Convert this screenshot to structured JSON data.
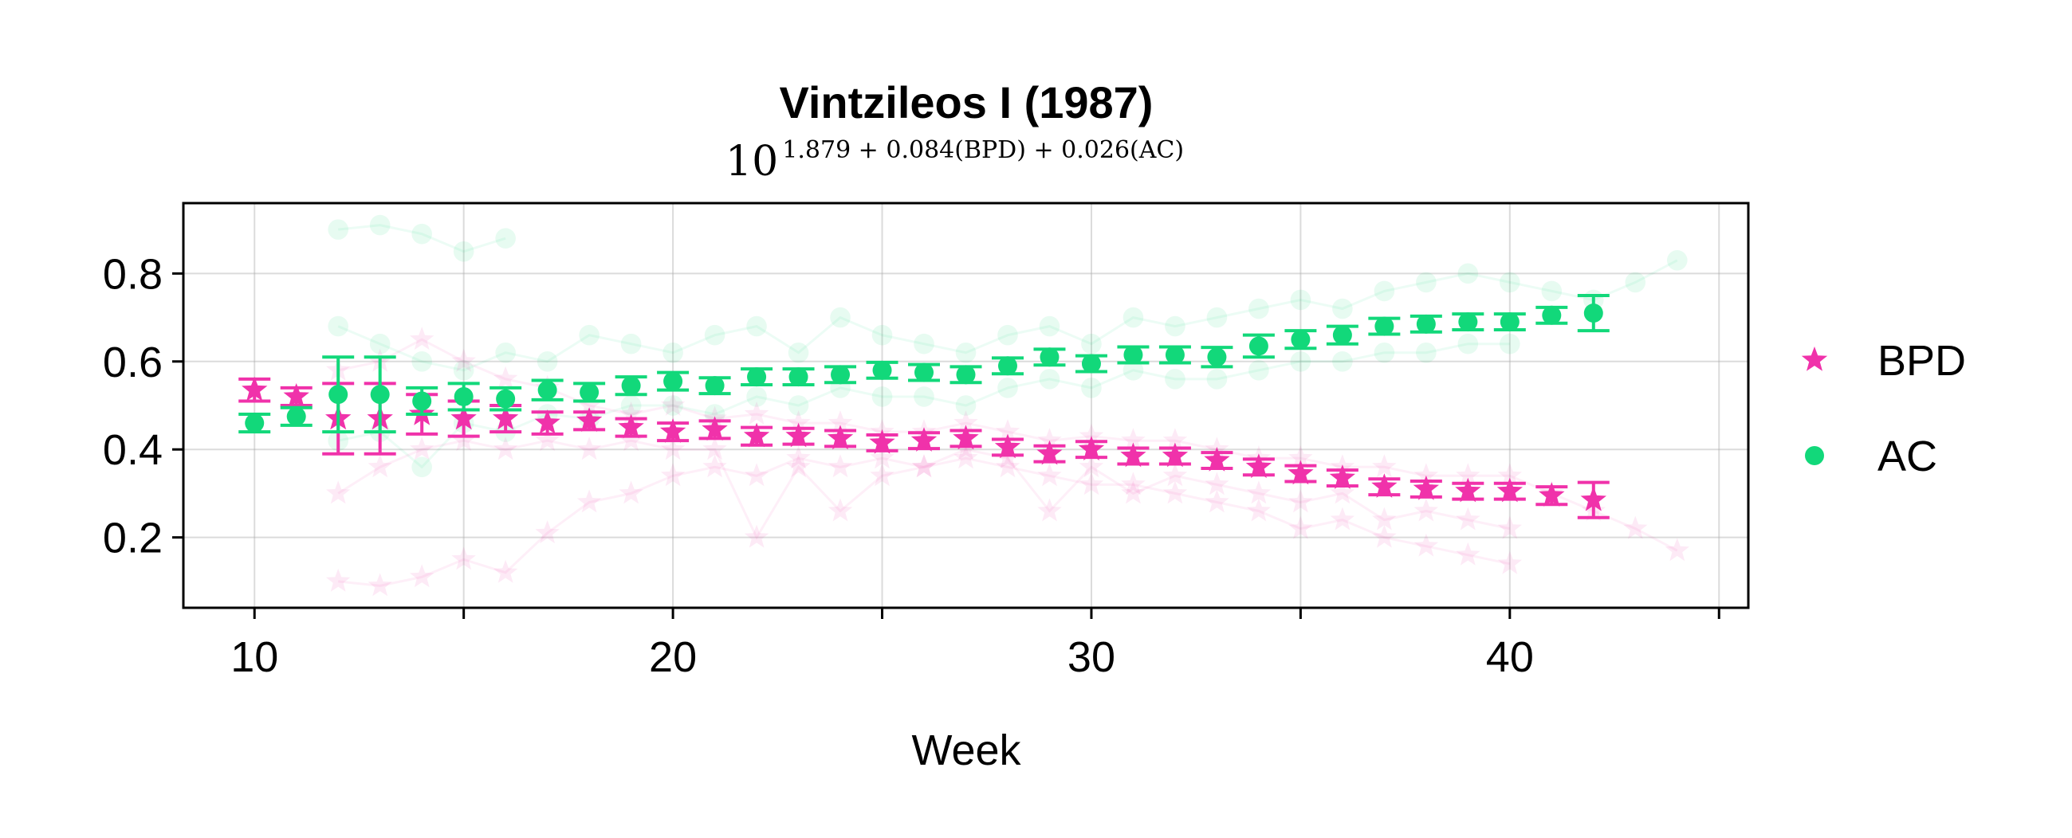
{
  "chart_data": {
    "type": "scatter",
    "title": "Vintzileos I (1987)",
    "subtitle": {
      "base": "10",
      "exponent": "1.879 + 0.084(BPD) + 0.026(AC)"
    },
    "xlabel": "Week",
    "ylabel": "",
    "xlim": [
      8.3,
      45.7
    ],
    "ylim": [
      0.04,
      0.96
    ],
    "xticks": [
      10,
      20,
      30,
      40
    ],
    "xminor_ticks": [
      15,
      25,
      35,
      45
    ],
    "yticks": [
      0.2,
      0.4,
      0.6,
      0.8
    ],
    "ytick_labels": [
      "0.2",
      "0.4",
      "0.6",
      "0.8"
    ],
    "grid": true,
    "legend_position": "right",
    "series": [
      {
        "name": "BPD",
        "marker": "star",
        "color": "#f032aa",
        "x": [
          10,
          11,
          12,
          13,
          14,
          15,
          16,
          17,
          18,
          19,
          20,
          21,
          22,
          23,
          24,
          25,
          26,
          27,
          28,
          29,
          30,
          31,
          32,
          33,
          34,
          35,
          36,
          37,
          38,
          39,
          40,
          41,
          42
        ],
        "y": [
          0.535,
          0.52,
          0.47,
          0.47,
          0.48,
          0.47,
          0.47,
          0.46,
          0.465,
          0.45,
          0.44,
          0.445,
          0.43,
          0.43,
          0.425,
          0.415,
          0.42,
          0.425,
          0.405,
          0.39,
          0.4,
          0.385,
          0.385,
          0.375,
          0.36,
          0.345,
          0.335,
          0.315,
          0.31,
          0.305,
          0.305,
          0.295,
          0.285
        ],
        "err": [
          0.025,
          0.02,
          0.08,
          0.08,
          0.045,
          0.04,
          0.03,
          0.025,
          0.02,
          0.02,
          0.02,
          0.02,
          0.02,
          0.018,
          0.018,
          0.018,
          0.018,
          0.018,
          0.018,
          0.018,
          0.018,
          0.018,
          0.018,
          0.018,
          0.018,
          0.018,
          0.018,
          0.018,
          0.018,
          0.018,
          0.018,
          0.02,
          0.04
        ]
      },
      {
        "name": "AC",
        "marker": "circle",
        "color": "#12d87a",
        "x": [
          10,
          11,
          12,
          13,
          14,
          15,
          16,
          17,
          18,
          19,
          20,
          21,
          22,
          23,
          24,
          25,
          26,
          27,
          28,
          29,
          30,
          31,
          32,
          33,
          34,
          35,
          36,
          37,
          38,
          39,
          40,
          41,
          42
        ],
        "y": [
          0.46,
          0.475,
          0.525,
          0.525,
          0.51,
          0.52,
          0.515,
          0.535,
          0.53,
          0.545,
          0.555,
          0.545,
          0.565,
          0.565,
          0.57,
          0.58,
          0.575,
          0.57,
          0.59,
          0.61,
          0.595,
          0.615,
          0.615,
          0.61,
          0.635,
          0.65,
          0.66,
          0.68,
          0.685,
          0.69,
          0.69,
          0.705,
          0.71
        ],
        "err": [
          0.02,
          0.02,
          0.085,
          0.085,
          0.03,
          0.03,
          0.025,
          0.022,
          0.02,
          0.02,
          0.02,
          0.018,
          0.018,
          0.018,
          0.018,
          0.018,
          0.018,
          0.018,
          0.018,
          0.018,
          0.018,
          0.018,
          0.018,
          0.022,
          0.025,
          0.02,
          0.02,
          0.018,
          0.018,
          0.018,
          0.018,
          0.018,
          0.04
        ]
      }
    ],
    "background_traces": [
      {
        "series": "AC",
        "x": [
          12,
          13,
          14,
          15,
          16
        ],
        "y": [
          0.9,
          0.91,
          0.89,
          0.85,
          0.88
        ]
      },
      {
        "series": "AC",
        "x": [
          12,
          13,
          14,
          15,
          16,
          17,
          18,
          19,
          20,
          21,
          22,
          23,
          24,
          25,
          26,
          27,
          28,
          29,
          30,
          31,
          32,
          33,
          34,
          35,
          36,
          37,
          38,
          39,
          40,
          41,
          42,
          43,
          44
        ],
        "y": [
          0.68,
          0.64,
          0.6,
          0.58,
          0.62,
          0.6,
          0.66,
          0.64,
          0.62,
          0.66,
          0.68,
          0.62,
          0.7,
          0.66,
          0.64,
          0.62,
          0.66,
          0.68,
          0.64,
          0.7,
          0.68,
          0.7,
          0.72,
          0.74,
          0.72,
          0.76,
          0.78,
          0.8,
          0.78,
          0.76,
          0.74,
          0.78,
          0.83
        ]
      },
      {
        "series": "AC",
        "x": [
          12,
          13,
          14,
          15,
          16,
          17,
          18,
          19,
          20,
          21,
          22,
          23,
          24,
          25,
          26,
          27,
          28,
          29,
          30,
          31,
          32,
          33,
          34,
          35,
          36,
          37,
          38,
          39,
          40
        ],
        "y": [
          0.42,
          0.44,
          0.36,
          0.46,
          0.44,
          0.48,
          0.47,
          0.5,
          0.5,
          0.48,
          0.52,
          0.5,
          0.54,
          0.52,
          0.52,
          0.5,
          0.54,
          0.56,
          0.54,
          0.58,
          0.56,
          0.56,
          0.58,
          0.6,
          0.6,
          0.62,
          0.62,
          0.64,
          0.64
        ]
      },
      {
        "series": "BPD",
        "x": [
          12,
          13,
          14,
          15,
          16,
          17,
          18,
          19,
          20,
          21,
          22,
          23,
          24,
          25,
          26,
          27,
          28,
          29,
          30,
          31,
          32,
          33,
          34,
          35,
          36,
          37,
          38,
          39,
          40
        ],
        "y": [
          0.1,
          0.09,
          0.11,
          0.15,
          0.12,
          0.21,
          0.28,
          0.3,
          0.34,
          0.36,
          0.34,
          0.38,
          0.36,
          0.38,
          0.36,
          0.38,
          0.36,
          0.34,
          0.32,
          0.32,
          0.3,
          0.28,
          0.26,
          0.22,
          0.24,
          0.2,
          0.18,
          0.16,
          0.14
        ]
      },
      {
        "series": "BPD",
        "x": [
          12,
          13,
          14,
          15,
          16,
          17,
          18,
          19,
          20,
          21,
          22,
          23,
          24,
          25,
          26,
          27,
          28,
          29,
          30,
          31,
          32,
          33,
          34,
          35,
          36,
          37,
          38,
          39,
          40,
          41,
          42,
          43,
          44
        ],
        "y": [
          0.58,
          0.6,
          0.65,
          0.6,
          0.56,
          0.54,
          0.5,
          0.48,
          0.5,
          0.47,
          0.48,
          0.46,
          0.46,
          0.44,
          0.44,
          0.46,
          0.44,
          0.42,
          0.43,
          0.42,
          0.42,
          0.4,
          0.38,
          0.38,
          0.36,
          0.36,
          0.34,
          0.34,
          0.34,
          0.3,
          0.26,
          0.22,
          0.17
        ]
      },
      {
        "series": "BPD",
        "x": [
          12,
          13,
          14,
          15,
          16,
          17,
          18,
          19,
          20,
          21,
          22,
          23,
          24,
          25,
          26,
          27,
          28,
          29,
          30,
          31,
          32,
          33,
          34,
          35,
          36,
          37,
          38,
          39,
          40
        ],
        "y": [
          0.3,
          0.36,
          0.4,
          0.42,
          0.4,
          0.42,
          0.4,
          0.42,
          0.4,
          0.4,
          0.2,
          0.36,
          0.26,
          0.34,
          0.36,
          0.4,
          0.38,
          0.26,
          0.36,
          0.3,
          0.34,
          0.32,
          0.3,
          0.28,
          0.3,
          0.24,
          0.26,
          0.24,
          0.22
        ]
      }
    ],
    "legend": [
      {
        "name": "BPD",
        "marker": "star",
        "color": "#f032aa"
      },
      {
        "name": "AC",
        "marker": "circle",
        "color": "#12d87a"
      }
    ]
  }
}
